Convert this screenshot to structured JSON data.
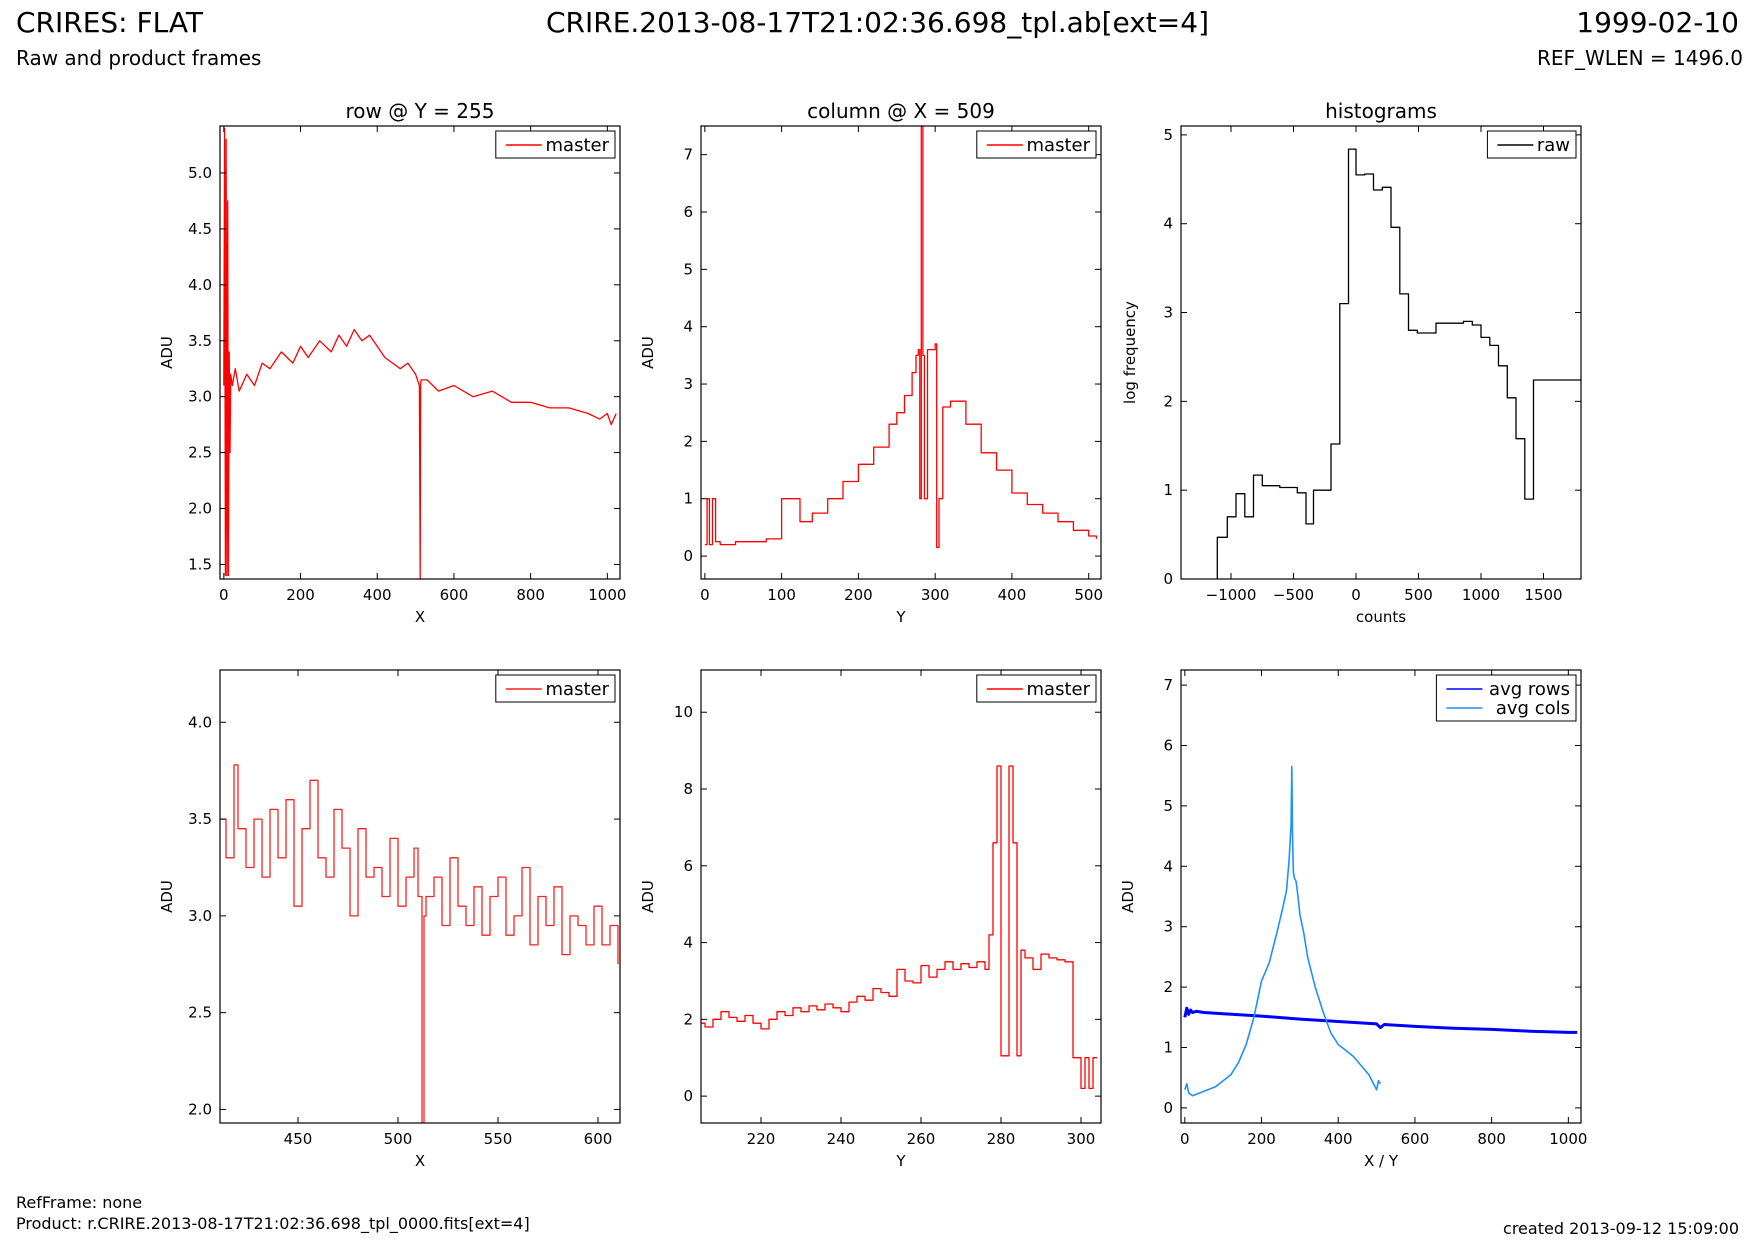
{
  "header": {
    "title": "CRIRES: FLAT",
    "subtitle": "Raw and product frames",
    "filename": "CRIRE.2013-08-17T21:02:36.698_tpl.ab[ext=4]",
    "date": "1999-02-10",
    "ref_wlen": "REF_WLEN = 1496.0"
  },
  "footer": {
    "refframe": "RefFrame: none",
    "product": "Product: r.CRIRE.2013-08-17T21:02:36.698_tpl_0000.fits[ext=4]",
    "created": "created 2013-09-12 15:09:00"
  },
  "chart_data": [
    {
      "id": "row",
      "type": "line",
      "title": "row @ Y = 255",
      "xlabel": "X",
      "ylabel": "ADU",
      "xlim": [
        -10,
        1033
      ],
      "ylim": [
        1.37,
        5.42
      ],
      "xticks": [
        0,
        200,
        400,
        600,
        800,
        1000
      ],
      "yticks": [
        1.5,
        2.0,
        2.5,
        3.0,
        3.5,
        4.0,
        4.5,
        5.0
      ],
      "tick_decimals": 1,
      "legend": "top-right",
      "series": [
        {
          "name": "master",
          "color": "#ff0000",
          "step": false,
          "x": [
            0,
            2,
            4,
            6,
            8,
            10,
            12,
            14,
            16,
            18,
            22,
            30,
            40,
            60,
            80,
            100,
            120,
            150,
            180,
            200,
            220,
            250,
            280,
            300,
            320,
            340,
            360,
            380,
            400,
            420,
            440,
            460,
            480,
            500,
            510,
            512,
            513,
            514,
            530,
            560,
            600,
            650,
            700,
            750,
            800,
            850,
            900,
            950,
            980,
            1000,
            1010,
            1023
          ],
          "y": [
            3.1,
            5.4,
            1.4,
            5.3,
            1.4,
            4.75,
            1.4,
            3.4,
            2.5,
            3.2,
            3.1,
            3.25,
            3.05,
            3.2,
            3.1,
            3.3,
            3.25,
            3.4,
            3.3,
            3.45,
            3.35,
            3.5,
            3.4,
            3.55,
            3.45,
            3.6,
            3.5,
            3.55,
            3.45,
            3.35,
            3.3,
            3.25,
            3.3,
            3.2,
            3.1,
            1.37,
            3.1,
            3.15,
            3.15,
            3.05,
            3.1,
            3.0,
            3.05,
            2.95,
            2.95,
            2.9,
            2.9,
            2.85,
            2.8,
            2.85,
            2.75,
            2.85
          ]
        }
      ]
    },
    {
      "id": "column",
      "type": "line",
      "title": "column @ X = 509",
      "xlabel": "Y",
      "ylabel": "ADU",
      "xlim": [
        -5,
        516
      ],
      "ylim": [
        -0.4,
        7.5
      ],
      "xticks": [
        0,
        100,
        200,
        300,
        400,
        500
      ],
      "yticks": [
        0,
        1,
        2,
        3,
        4,
        5,
        6,
        7
      ],
      "tick_decimals": 0,
      "legend": "top-right",
      "series": [
        {
          "name": "master",
          "color": "#ff0000",
          "step": true,
          "x": [
            0,
            3,
            6,
            10,
            14,
            20,
            40,
            60,
            80,
            98,
            100,
            102,
            120,
            124,
            140,
            160,
            180,
            200,
            220,
            240,
            250,
            260,
            270,
            275,
            278,
            280,
            282,
            284,
            286,
            290,
            300,
            302,
            305,
            310,
            320,
            340,
            360,
            380,
            400,
            420,
            440,
            460,
            480,
            500,
            510
          ],
          "y": [
            0.2,
            1.0,
            0.2,
            1.0,
            0.25,
            0.2,
            0.25,
            0.25,
            0.3,
            0.3,
            1.0,
            1.0,
            1.0,
            0.6,
            0.75,
            1.0,
            1.3,
            1.6,
            1.9,
            2.3,
            2.5,
            2.8,
            3.2,
            3.5,
            3.6,
            1.0,
            7.5,
            3.5,
            1.0,
            3.6,
            3.7,
            0.15,
            1.0,
            2.6,
            2.7,
            2.3,
            1.8,
            1.5,
            1.1,
            0.9,
            0.75,
            0.6,
            0.45,
            0.35,
            0.3
          ]
        }
      ]
    },
    {
      "id": "hist",
      "type": "line",
      "title": "histograms",
      "xlabel": "counts",
      "ylabel": "log frequency",
      "xlim": [
        -1400,
        1800
      ],
      "ylim": [
        0,
        5.1
      ],
      "xticks": [
        -1000,
        -500,
        0,
        500,
        1000,
        1500
      ],
      "yticks": [
        0,
        1,
        2,
        3,
        4,
        5
      ],
      "tick_labels": [
        "−1000",
        "−500",
        "0",
        "500",
        "1000",
        "1500"
      ],
      "tick_decimals": 0,
      "legend": "top-right",
      "series": [
        {
          "name": "raw",
          "color": "#000000",
          "step": true,
          "x": [
            -1110,
            -1110,
            -1030,
            -960,
            -890,
            -820,
            -750,
            -680,
            -610,
            -540,
            -470,
            -400,
            -340,
            -270,
            -200,
            -130,
            -60,
            0,
            70,
            140,
            210,
            280,
            350,
            420,
            490,
            560,
            640,
            720,
            790,
            860,
            930,
            1000,
            1070,
            1140,
            1210,
            1280,
            1350,
            1420,
            1490,
            1560,
            1630,
            1700,
            1800
          ],
          "y": [
            0,
            0.47,
            0.7,
            0.96,
            0.7,
            1.17,
            1.05,
            1.05,
            1.03,
            1.03,
            0.97,
            0.62,
            1.0,
            1.0,
            1.52,
            3.1,
            4.84,
            4.55,
            4.56,
            4.38,
            4.41,
            3.96,
            3.21,
            2.8,
            2.77,
            2.77,
            2.88,
            2.88,
            2.88,
            2.9,
            2.86,
            2.72,
            2.63,
            2.4,
            2.04,
            1.58,
            0.9,
            2.24,
            2.24,
            2.24,
            2.24,
            2.24,
            2.24
          ]
        }
      ]
    },
    {
      "id": "row-zoom",
      "type": "line",
      "title": "",
      "xlabel": "X",
      "ylabel": "ADU",
      "xlim": [
        411,
        611
      ],
      "ylim": [
        1.93,
        4.27
      ],
      "xticks": [
        450,
        500,
        550,
        600
      ],
      "yticks": [
        2.0,
        2.5,
        3.0,
        3.5,
        4.0
      ],
      "tick_decimals": 1,
      "legend": "top-right",
      "series": [
        {
          "name": "master",
          "color": "#ff2020",
          "step": true,
          "x": [
            411,
            414,
            418,
            420,
            424,
            428,
            432,
            436,
            440,
            444,
            448,
            452,
            456,
            460,
            464,
            468,
            472,
            476,
            480,
            484,
            488,
            492,
            496,
            500,
            504,
            508,
            510,
            512,
            513,
            514,
            518,
            522,
            526,
            530,
            534,
            538,
            542,
            546,
            550,
            554,
            558,
            562,
            566,
            570,
            574,
            578,
            582,
            586,
            590,
            594,
            598,
            602,
            606,
            610
          ],
          "y": [
            3.5,
            3.3,
            3.78,
            3.45,
            3.25,
            3.5,
            3.2,
            3.55,
            3.3,
            3.6,
            3.05,
            3.45,
            3.7,
            3.3,
            3.2,
            3.55,
            3.35,
            3.0,
            3.45,
            3.2,
            3.25,
            3.1,
            3.4,
            3.05,
            3.2,
            3.35,
            3.1,
            1.93,
            3.0,
            3.1,
            3.2,
            2.95,
            3.3,
            3.05,
            2.95,
            3.15,
            2.9,
            3.1,
            3.2,
            2.9,
            3.0,
            3.25,
            2.85,
            3.1,
            2.95,
            3.15,
            2.8,
            3.0,
            2.95,
            2.85,
            3.05,
            2.85,
            2.95,
            2.75
          ]
        }
      ]
    },
    {
      "id": "column-zoom",
      "type": "line",
      "title": "",
      "xlabel": "Y",
      "ylabel": "ADU",
      "xlim": [
        205,
        305
      ],
      "ylim": [
        -0.7,
        11.1
      ],
      "xticks": [
        220,
        240,
        260,
        280,
        300
      ],
      "yticks": [
        0,
        2,
        4,
        6,
        8,
        10
      ],
      "tick_decimals": 0,
      "legend": "top-right",
      "series": [
        {
          "name": "master",
          "color": "#ff0000",
          "step": true,
          "x": [
            205,
            206,
            208,
            210,
            212,
            214,
            216,
            218,
            220,
            222,
            224,
            226,
            228,
            230,
            232,
            234,
            236,
            238,
            240,
            242,
            244,
            246,
            248,
            250,
            252,
            254,
            256,
            258,
            260,
            262,
            264,
            266,
            268,
            270,
            272,
            274,
            276,
            277,
            278,
            279,
            280,
            282,
            283,
            284,
            285,
            286,
            288,
            290,
            292,
            294,
            296,
            298,
            299,
            300,
            301,
            302,
            303,
            304
          ],
          "y": [
            1.9,
            1.8,
            2.0,
            2.2,
            2.05,
            1.95,
            2.1,
            1.9,
            1.75,
            2.0,
            2.2,
            2.1,
            2.3,
            2.2,
            2.35,
            2.25,
            2.4,
            2.3,
            2.2,
            2.45,
            2.6,
            2.5,
            2.8,
            2.7,
            2.6,
            3.3,
            3.0,
            2.95,
            3.4,
            3.1,
            3.3,
            3.5,
            3.3,
            3.45,
            3.35,
            3.5,
            3.3,
            4.2,
            6.6,
            8.6,
            1.05,
            8.6,
            6.6,
            1.05,
            3.8,
            3.6,
            3.3,
            3.7,
            3.6,
            3.55,
            3.5,
            1.0,
            1.0,
            0.2,
            1.0,
            0.2,
            1.0,
            1.0
          ]
        }
      ]
    },
    {
      "id": "avg",
      "type": "line",
      "title": "",
      "xlabel": "X / Y",
      "ylabel": "ADU",
      "xlim": [
        -10,
        1033
      ],
      "ylim": [
        -0.25,
        7.25
      ],
      "xticks": [
        0,
        200,
        400,
        600,
        800,
        1000
      ],
      "yticks": [
        0,
        1,
        2,
        3,
        4,
        5,
        6,
        7
      ],
      "tick_decimals": 0,
      "legend": "top-right",
      "series": [
        {
          "name": "avg rows",
          "color": "#0000ff",
          "step": false,
          "width": 3,
          "x": [
            0,
            5,
            10,
            15,
            20,
            30,
            50,
            100,
            200,
            300,
            400,
            500,
            510,
            520,
            600,
            700,
            800,
            900,
            1000,
            1023
          ],
          "y": [
            1.5,
            1.65,
            1.55,
            1.62,
            1.58,
            1.6,
            1.58,
            1.56,
            1.52,
            1.47,
            1.43,
            1.39,
            1.33,
            1.38,
            1.35,
            1.32,
            1.3,
            1.27,
            1.25,
            1.25
          ]
        },
        {
          "name": "avg cols",
          "color": "#1e90ff",
          "step": false,
          "width": 1.6,
          "x": [
            0,
            5,
            10,
            20,
            40,
            60,
            80,
            100,
            120,
            140,
            160,
            180,
            200,
            220,
            240,
            255,
            265,
            272,
            277,
            279,
            281,
            283,
            286,
            290,
            295,
            300,
            310,
            320,
            340,
            360,
            380,
            400,
            420,
            440,
            460,
            480,
            500,
            505,
            510
          ],
          "y": [
            0.3,
            0.4,
            0.25,
            0.2,
            0.25,
            0.3,
            0.35,
            0.45,
            0.55,
            0.75,
            1.05,
            1.5,
            2.1,
            2.4,
            2.9,
            3.3,
            3.6,
            4.1,
            4.7,
            5.65,
            4.4,
            3.9,
            3.8,
            3.75,
            3.5,
            3.2,
            2.9,
            2.5,
            2.0,
            1.6,
            1.25,
            1.05,
            0.95,
            0.85,
            0.7,
            0.55,
            0.3,
            0.45,
            0.4
          ]
        }
      ]
    }
  ]
}
